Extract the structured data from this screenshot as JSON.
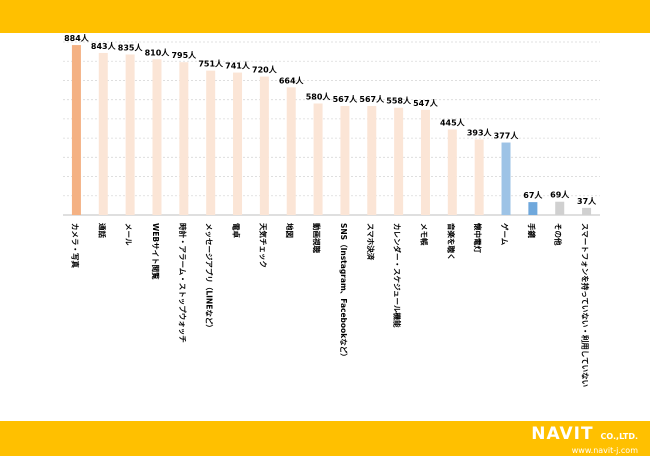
{
  "logo": {
    "brand": "NAVIT",
    "suffix": "CO.,LTD.",
    "url": "www.navit-j.com"
  },
  "colors": {
    "band": "#ffc000",
    "grid": "#d9d9d9",
    "axis": "#bfbfbf",
    "top_bar": "#f4b183",
    "orange_bar": "#fbe5d6",
    "blue_bar": "#9dc3e6",
    "light_blue_bar": "#6fa8dc",
    "gray_bar": "#d0d0d0",
    "label": "#000000"
  },
  "chart_data": {
    "type": "bar",
    "title": "",
    "xlabel": "",
    "ylabel": "",
    "value_suffix": "人",
    "ylim": [
      0,
      900
    ],
    "grid": true,
    "categories": [
      "カメラ・写真",
      "通話",
      "メール",
      "WEBサイト閲覧",
      "時計・アラーム・ストップウォッチ",
      "メッセージアプリ（LINEなど）",
      "電卓",
      "天気チェック",
      "地図",
      "動画視聴",
      "SNS（Instagram、Facebookなど）",
      "スマホ決済",
      "カレンダー・スケジュール機能",
      "メモ帳",
      "音楽を聴く",
      "懐中電灯",
      "ゲーム",
      "手鏡",
      "その他",
      "スマートフォンを持っていない・利用していない"
    ],
    "values": [
      884,
      843,
      835,
      810,
      795,
      751,
      741,
      720,
      664,
      580,
      567,
      567,
      558,
      547,
      445,
      393,
      377,
      67,
      69,
      37
    ],
    "bar_colors": [
      "top_bar",
      "orange_bar",
      "orange_bar",
      "orange_bar",
      "orange_bar",
      "orange_bar",
      "orange_bar",
      "orange_bar",
      "orange_bar",
      "orange_bar",
      "orange_bar",
      "orange_bar",
      "orange_bar",
      "orange_bar",
      "orange_bar",
      "orange_bar",
      "blue_bar",
      "light_blue_bar",
      "gray_bar",
      "gray_bar"
    ]
  }
}
